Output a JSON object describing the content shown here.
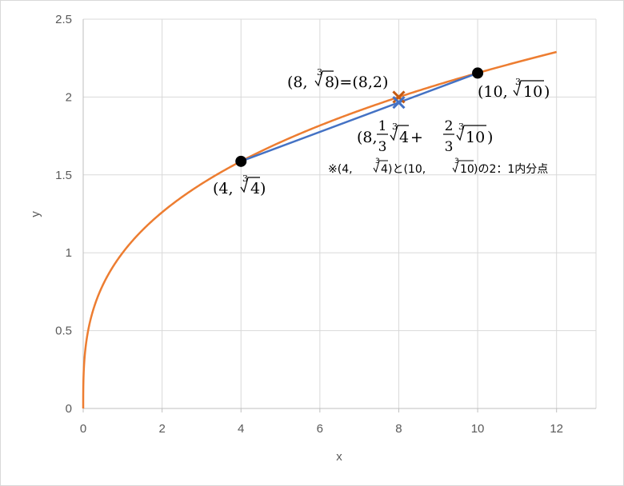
{
  "chart_data": {
    "type": "line",
    "title": "",
    "xlabel": "x",
    "ylabel": "y",
    "xlim": [
      0,
      13
    ],
    "ylim": [
      0,
      2.5
    ],
    "x_ticks": [
      "0",
      "2",
      "4",
      "6",
      "8",
      "10",
      "12"
    ],
    "y_ticks": [
      "0",
      "0.5",
      "1",
      "1.5",
      "2",
      "2.5"
    ],
    "grid": true,
    "legend": "none",
    "series": [
      {
        "function": "cube root",
        "x_range": [
          0,
          12
        ],
        "color": "#ED7D31"
      },
      {
        "points": [
          [
            4,
            1.587
          ],
          [
            10,
            2.154
          ]
        ],
        "color": "#4472C4"
      }
    ],
    "markers": [
      {
        "x": 4,
        "y": 1.587,
        "shape": "dot",
        "color": "#000000"
      },
      {
        "x": 10,
        "y": 2.154,
        "shape": "dot",
        "color": "#000000"
      },
      {
        "x": 8,
        "y": 2.0,
        "shape": "x",
        "color": "#C55A11"
      },
      {
        "x": 8,
        "y": 1.965,
        "shape": "x",
        "color": "#4472C4"
      }
    ],
    "annotations": {
      "p4": {
        "open": "(4,",
        "index": "3",
        "rad": "4",
        "close": ")"
      },
      "p10": {
        "open": "(10,",
        "index": "3",
        "rad": "10",
        "close": ")"
      },
      "p8": {
        "open": "(8,",
        "index": "3",
        "rad": "8",
        "close": ")=(8,2)"
      },
      "mid": {
        "open": "(8,",
        "num": "1",
        "den": "3",
        "index": "3",
        "rad1": "4",
        "plus": "+",
        "num2": "2",
        "den2": "3",
        "rad2": "10",
        "close": ")"
      },
      "note": {
        "mark": "※(4,",
        "index": "3",
        "rad1": "4",
        "mid": ")と(10,",
        "rad2": "10",
        "end": ")の2：1内分点"
      }
    }
  }
}
